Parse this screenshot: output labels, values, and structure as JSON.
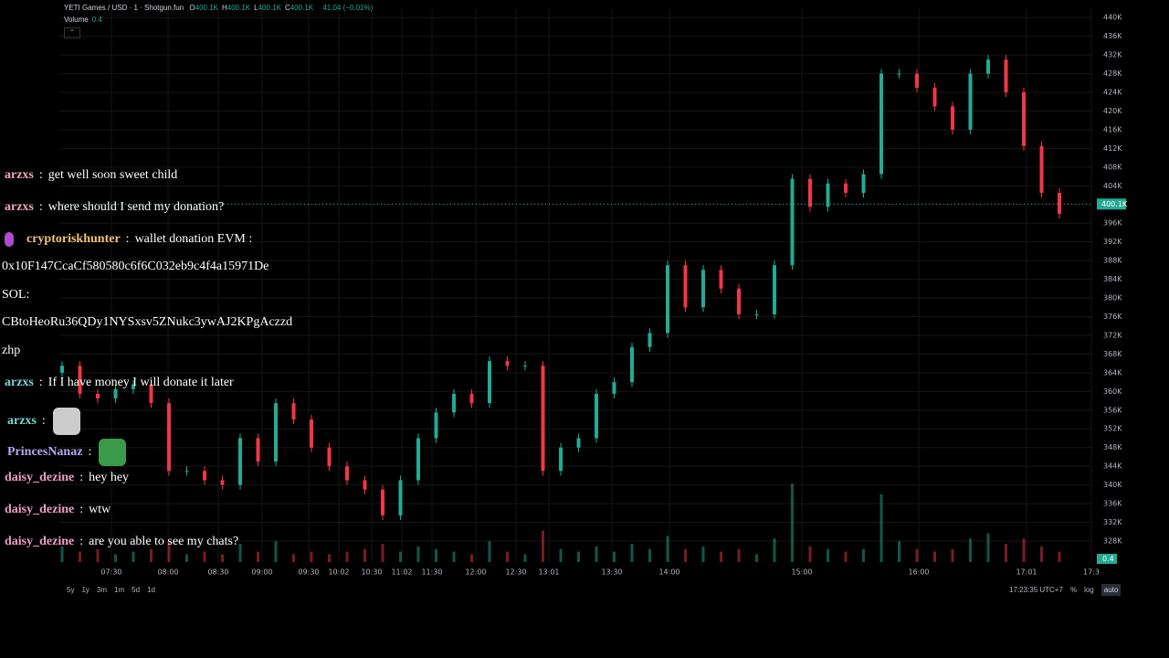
{
  "header": {
    "symbol": "YETI Games / USD · 1 · Shotgun.fun",
    "ohlc": [
      {
        "label": "O",
        "value": "400.1K"
      },
      {
        "label": "H",
        "value": "400.1K"
      },
      {
        "label": "L",
        "value": "400.1K"
      },
      {
        "label": "C",
        "value": "400.1K"
      }
    ],
    "change": "41.04 (−0.01%)",
    "volume_label": "Volume",
    "volume_value": "0.4"
  },
  "chart_data": {
    "type": "candlestick",
    "open": [
      364000,
      365500,
      359500,
      358500,
      360500,
      361500,
      357500,
      343000,
      343000,
      341000,
      340000,
      350000,
      345000,
      357500,
      354000,
      348000,
      344000,
      341000,
      339000,
      333500,
      341000,
      350000,
      355500,
      359500,
      357500,
      366500,
      365500,
      365500,
      343000,
      348000,
      350000,
      359500,
      362000,
      369500,
      372500,
      387000,
      378000,
      386000,
      382000,
      376500,
      376500,
      387000,
      405500,
      399500,
      404500,
      402500,
      406500,
      428000,
      428000,
      425000,
      421000,
      416000,
      428000,
      431000,
      424000,
      412500,
      402500
    ],
    "high": [
      366500,
      366500,
      360500,
      361500,
      362500,
      362500,
      358500,
      344000,
      344000,
      342000,
      351000,
      351000,
      358500,
      358500,
      355000,
      349000,
      345000,
      342000,
      340000,
      342000,
      351000,
      356500,
      360500,
      360500,
      367500,
      367500,
      366500,
      366500,
      349000,
      351000,
      360500,
      363000,
      370500,
      373500,
      388000,
      388000,
      387000,
      387000,
      383000,
      377500,
      388000,
      406500,
      406500,
      405500,
      405500,
      407500,
      429000,
      429000,
      429000,
      426000,
      422000,
      429000,
      432000,
      432000,
      425000,
      413500,
      403500
    ],
    "low": [
      363000,
      358500,
      357500,
      357500,
      359500,
      356500,
      342000,
      342000,
      340000,
      339000,
      339000,
      344000,
      344000,
      353000,
      347000,
      343000,
      340000,
      338000,
      332500,
      332500,
      340000,
      349000,
      354500,
      356500,
      356500,
      364500,
      364500,
      342000,
      342000,
      347000,
      349000,
      358500,
      361000,
      368500,
      371500,
      377000,
      377000,
      381000,
      375500,
      375500,
      375500,
      386000,
      398500,
      398500,
      401500,
      401500,
      405500,
      427000,
      424000,
      420000,
      415000,
      415000,
      427000,
      423000,
      411500,
      401500,
      397000
    ],
    "close": [
      365500,
      359500,
      358500,
      360500,
      361500,
      357500,
      343000,
      343000,
      341000,
      340000,
      350000,
      345000,
      357500,
      354000,
      348000,
      344000,
      341000,
      339000,
      333500,
      341000,
      350000,
      355500,
      359500,
      357500,
      366500,
      365500,
      365500,
      343000,
      348000,
      350000,
      359500,
      362000,
      369500,
      372500,
      387000,
      378000,
      386000,
      382000,
      376500,
      376500,
      387000,
      405500,
      399500,
      404500,
      402500,
      406500,
      428000,
      428000,
      425000,
      421000,
      416000,
      428000,
      431000,
      424000,
      412500,
      402500,
      398000
    ],
    "volume": [
      0.6,
      0.4,
      0.5,
      0.3,
      0.4,
      0.5,
      0.8,
      0.3,
      0.4,
      0.3,
      0.7,
      0.4,
      0.8,
      0.3,
      0.4,
      0.3,
      0.4,
      0.5,
      0.7,
      0.4,
      0.6,
      0.5,
      0.4,
      0.3,
      0.8,
      0.4,
      0.3,
      1.2,
      0.5,
      0.4,
      0.6,
      0.4,
      0.7,
      0.5,
      1.0,
      0.5,
      0.6,
      0.4,
      0.5,
      0.3,
      0.9,
      3.0,
      0.6,
      0.5,
      0.4,
      0.5,
      2.6,
      0.8,
      0.5,
      0.4,
      0.5,
      0.9,
      1.1,
      0.7,
      0.9,
      0.6,
      0.4
    ],
    "volume_lim": [
      0,
      3.5
    ],
    "up_color": "#22ab94",
    "down_color": "#f23645",
    "ylim": [
      323500,
      441800
    ],
    "yticks": [
      {
        "value": 328000,
        "label": "328K"
      },
      {
        "value": 332000,
        "label": "332K"
      },
      {
        "value": 336000,
        "label": "336K"
      },
      {
        "value": 340000,
        "label": "340K"
      },
      {
        "value": 344000,
        "label": "344K"
      },
      {
        "value": 348000,
        "label": "348K"
      },
      {
        "value": 352000,
        "label": "352K"
      },
      {
        "value": 356000,
        "label": "356K"
      },
      {
        "value": 360000,
        "label": "360K"
      },
      {
        "value": 364000,
        "label": "364K"
      },
      {
        "value": 368000,
        "label": "368K"
      },
      {
        "value": 372000,
        "label": "372K"
      },
      {
        "value": 376000,
        "label": "376K"
      },
      {
        "value": 380000,
        "label": "380K"
      },
      {
        "value": 384000,
        "label": "384K"
      },
      {
        "value": 388000,
        "label": "388K"
      },
      {
        "value": 392000,
        "label": "392K"
      },
      {
        "value": 396000,
        "label": "396K"
      },
      {
        "value": 400000,
        "label": "400K"
      },
      {
        "value": 404000,
        "label": "404K"
      },
      {
        "value": 408000,
        "label": "408K"
      },
      {
        "value": 412000,
        "label": "412K"
      },
      {
        "value": 416000,
        "label": "416K"
      },
      {
        "value": 420000,
        "label": "420K"
      },
      {
        "value": 424000,
        "label": "424K"
      },
      {
        "value": 428000,
        "label": "428K"
      },
      {
        "value": 432000,
        "label": "432K"
      },
      {
        "value": 436000,
        "label": "436K"
      },
      {
        "value": 440000,
        "label": "440K"
      }
    ],
    "time_labels": [
      "07:30",
      "08:00",
      "08:30",
      "09:00",
      "09:30",
      "10:02",
      "10:30",
      "11:02",
      "11:30",
      "12:00",
      "12:30",
      "13:01",
      "13:30",
      "14:00",
      "15:00",
      "16:00",
      "17:01",
      "17:3"
    ],
    "price_tag": {
      "value": 400100,
      "label": "400.1K"
    },
    "volume_tag": "0.4",
    "grid": true
  },
  "footer": {
    "ranges": [
      "5y",
      "1y",
      "3m",
      "1m",
      "5d",
      "1d"
    ],
    "clock": "17:23:35 UTC+7",
    "options": [
      "%",
      "log",
      "auto"
    ]
  },
  "chat": {
    "messages": [
      {
        "user": "arzxs",
        "color": "#f0a8b8",
        "text": "get well soon sweet child"
      },
      {
        "user": "arzxs",
        "color": "#f0a8b8",
        "text": "where should I send my donation?"
      },
      {
        "user": "cryptoriskhunter",
        "color": "#f2c27c",
        "text": "wallet donation EVM :",
        "continuation": [
          "0x10F147CcaCf580580c6f6C032eb9c4f4a15971De",
          "SOL:",
          "CBtoHeoRu36QDy1NYSxsv5ZNukc3ywAJ2KPgAczzd",
          "zhp"
        ]
      },
      {
        "user": "arzxs",
        "color": "#7fd6d0",
        "text": "If I have money I will donate it later"
      },
      {
        "user": "arzxs",
        "color": "#7fd6d0"
      },
      {
        "user": "PrincesNanaz",
        "color": "#b6a6f2"
      },
      {
        "user": "daisy_dezine",
        "color": "#eaa0c2",
        "text": "hey hey"
      },
      {
        "user": "daisy_dezine",
        "color": "#eaa0c2",
        "text": "wtw"
      },
      {
        "user": "daisy_dezine",
        "color": "#eaa0c2",
        "text": "are you able to see my chats?"
      }
    ]
  }
}
